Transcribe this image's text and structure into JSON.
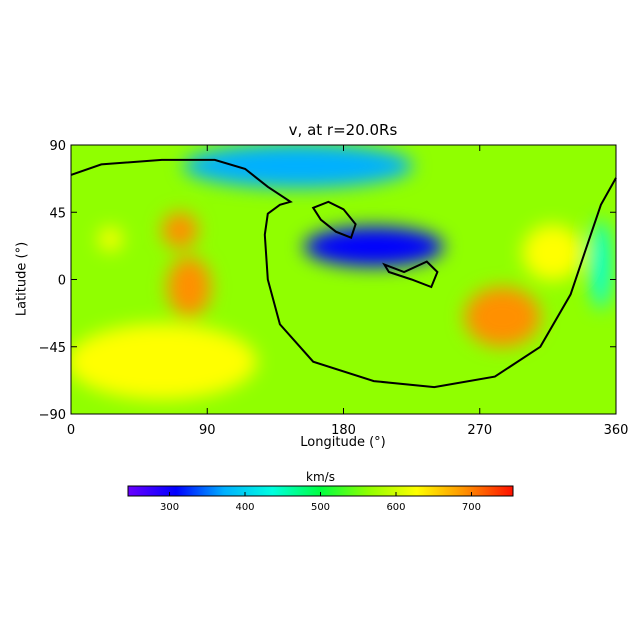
{
  "chart_data": {
    "type": "heatmap",
    "title": "v, at r=20.0Rs",
    "xlabel": "Longitude (°)",
    "ylabel": "Latitude (°)",
    "xlim": [
      0,
      360
    ],
    "ylim": [
      -90,
      90
    ],
    "xticks": [
      "0",
      "90",
      "180",
      "270",
      "360"
    ],
    "yticks": [
      "90",
      "45",
      "0",
      "−45",
      "−90"
    ],
    "colorbar": {
      "label": "km/s",
      "range": [
        245,
        755
      ],
      "ticks": [
        "300",
        "400",
        "500",
        "600",
        "700"
      ],
      "colormap": [
        "#6a00ff",
        "#0000ff",
        "#00b0ff",
        "#00ffe0",
        "#00ff40",
        "#90ff00",
        "#ffff00",
        "#ff9000",
        "#ff1000"
      ]
    },
    "grid": false,
    "legend": "none",
    "background_value": 540,
    "features": [
      {
        "name": "north polar band",
        "lon": 150,
        "lat": 76,
        "value": 360
      },
      {
        "name": "south high-speed wind",
        "lon": 60,
        "lat": -55,
        "value": 645
      },
      {
        "name": "west fast spot",
        "lon": 72,
        "lat": 33,
        "value": 715
      },
      {
        "name": "west fast arm",
        "lon": 78,
        "lat": -5,
        "value": 680
      },
      {
        "name": "small fast spot",
        "lon": 26,
        "lat": 27,
        "value": 650
      },
      {
        "name": "central slow belt",
        "lon": 200,
        "lat": 22,
        "value": 330
      },
      {
        "name": "southeast fast region",
        "lon": 285,
        "lat": -25,
        "value": 660
      },
      {
        "name": "east fast region",
        "lon": 318,
        "lat": 18,
        "value": 650
      },
      {
        "name": "east edge slow strip",
        "lon": 350,
        "lat": 10,
        "value": 420
      }
    ],
    "neutral_line_main": [
      [
        0,
        70
      ],
      [
        20,
        77
      ],
      [
        60,
        80
      ],
      [
        95,
        80
      ],
      [
        115,
        74
      ],
      [
        130,
        62
      ],
      [
        145,
        52
      ],
      [
        138,
        50
      ],
      [
        130,
        44
      ],
      [
        128,
        30
      ],
      [
        130,
        0
      ],
      [
        138,
        -30
      ],
      [
        160,
        -55
      ],
      [
        200,
        -68
      ],
      [
        240,
        -72
      ],
      [
        280,
        -65
      ],
      [
        310,
        -45
      ],
      [
        330,
        -10
      ],
      [
        340,
        20
      ],
      [
        350,
        50
      ],
      [
        360,
        68
      ]
    ],
    "neutral_line_closed": [
      [
        [
          160,
          48
        ],
        [
          170,
          52
        ],
        [
          180,
          47
        ],
        [
          188,
          37
        ],
        [
          185,
          28
        ],
        [
          175,
          32
        ],
        [
          165,
          40
        ],
        [
          160,
          48
        ]
      ],
      [
        [
          207,
          10
        ],
        [
          220,
          5
        ],
        [
          235,
          12
        ],
        [
          242,
          5
        ],
        [
          238,
          -5
        ],
        [
          225,
          0
        ],
        [
          210,
          5
        ],
        [
          207,
          10
        ]
      ]
    ]
  }
}
